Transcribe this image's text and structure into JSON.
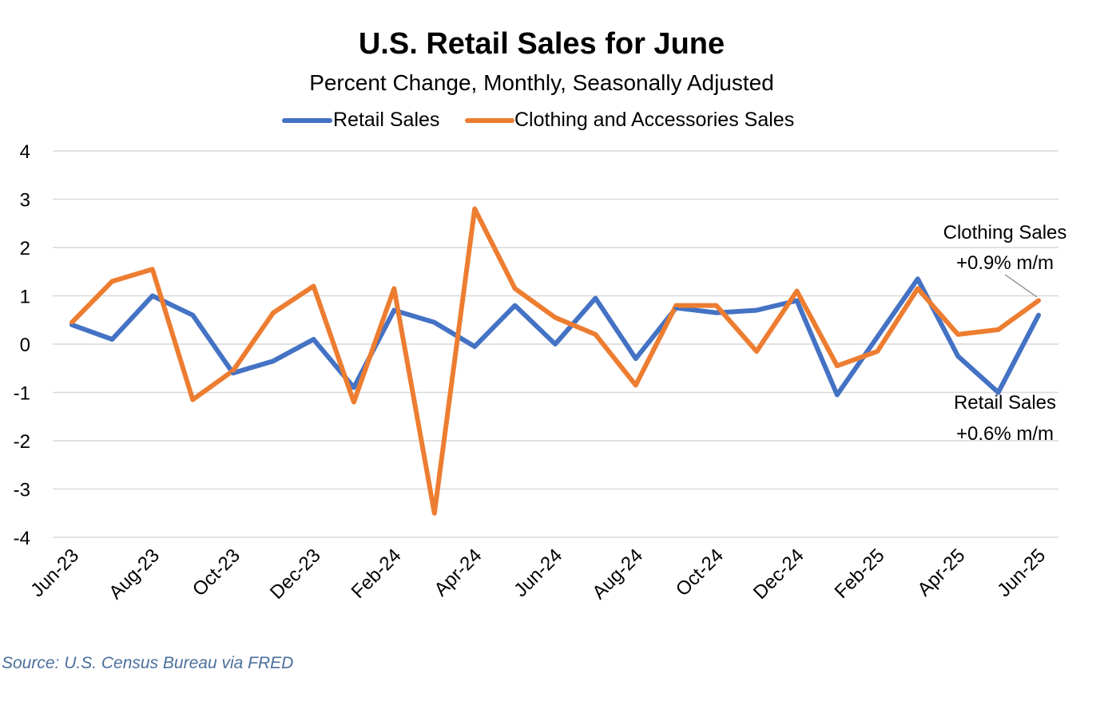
{
  "chart_data": {
    "type": "line",
    "title": "U.S. Retail Sales for June",
    "subtitle": "Percent Change, Monthly, Seasonally Adjusted",
    "xlabel": "",
    "ylabel": "",
    "ylim": [
      -4,
      4
    ],
    "yticks": [
      "4",
      "3",
      "2",
      "1",
      "0",
      "-1",
      "-2",
      "-3",
      "-4"
    ],
    "ytick_values": [
      4,
      3,
      2,
      1,
      0,
      -1,
      -2,
      -3,
      -4
    ],
    "grid": true,
    "legend_position": "top-center",
    "categories": [
      "Jun-23",
      "Jul-23",
      "Aug-23",
      "Sep-23",
      "Oct-23",
      "Nov-23",
      "Dec-23",
      "Jan-24",
      "Feb-24",
      "Mar-24",
      "Apr-24",
      "May-24",
      "Jun-24",
      "Jul-24",
      "Aug-24",
      "Sep-24",
      "Oct-24",
      "Nov-24",
      "Dec-24",
      "Jan-25",
      "Feb-25",
      "Mar-25",
      "Apr-25",
      "May-25",
      "Jun-25"
    ],
    "x_tick_labels": [
      "Jun-23",
      "",
      "Aug-23",
      "",
      "Oct-23",
      "",
      "Dec-23",
      "",
      "Feb-24",
      "",
      "Apr-24",
      "",
      "Jun-24",
      "",
      "Aug-24",
      "",
      "Oct-24",
      "",
      "Dec-24",
      "",
      "Feb-25",
      "",
      "Apr-25",
      "",
      "Jun-25"
    ],
    "series": [
      {
        "name": "Retail Sales",
        "color": "#4472c4",
        "values": [
          0.4,
          0.1,
          1.0,
          0.6,
          -0.6,
          -0.35,
          0.1,
          -0.9,
          0.7,
          0.45,
          -0.05,
          0.8,
          0.0,
          0.95,
          -0.3,
          0.75,
          0.65,
          0.7,
          0.9,
          -1.05,
          0.15,
          1.35,
          -0.25,
          -1.0,
          0.6
        ]
      },
      {
        "name": "Clothing and Accessories Sales",
        "color": "#ed7d31",
        "values": [
          0.45,
          1.3,
          1.55,
          -1.15,
          -0.55,
          0.65,
          1.2,
          -1.2,
          1.15,
          -3.5,
          2.8,
          1.15,
          0.55,
          0.2,
          -0.85,
          0.8,
          0.8,
          -0.15,
          1.1,
          -0.45,
          -0.15,
          1.15,
          0.2,
          0.3,
          0.9
        ]
      }
    ],
    "annotations": [
      {
        "series": "Clothing and Accessories Sales",
        "line1": "Clothing Sales",
        "line2": "+0.9% m/m"
      },
      {
        "series": "Retail Sales",
        "line1": "Retail Sales",
        "line2": "+0.6% m/m"
      }
    ],
    "source": "Source: U.S. Census Bureau via FRED"
  }
}
